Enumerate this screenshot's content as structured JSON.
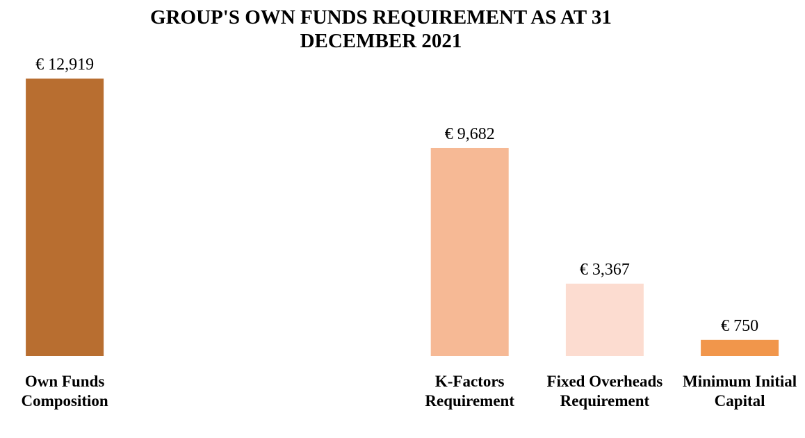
{
  "chart_data": {
    "type": "bar",
    "title": "GROUP'S OWN FUNDS REQUIREMENT AS AT 31 DECEMBER 2021",
    "categories": [
      "Own Funds Composition",
      null,
      null,
      "K-Factors Requirement",
      "Fixed Overheads Requirement",
      "Minimum Initial Capital"
    ],
    "values": [
      12919,
      null,
      null,
      9682,
      3367,
      750
    ],
    "value_labels": [
      "€ 12,919",
      null,
      null,
      "€ 9,682",
      "€ 3,367",
      "€ 750"
    ],
    "colors": [
      "#b86e30",
      null,
      null,
      "#f6b995",
      "#fcdcd0",
      "#f1964b"
    ]
  }
}
